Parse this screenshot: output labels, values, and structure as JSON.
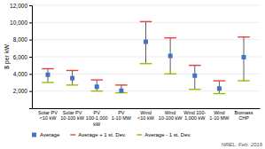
{
  "chart_data": {
    "type": "range",
    "ylabel": "$ per kW",
    "annotation": "NREL: Feb. 2016",
    "categories": [
      "Solar PV\n<10 kW",
      "Solar PV\n10-100 kW",
      "PV\n100-1,000\nkW",
      "PV\n1-10 MW",
      "Wind\n<10 kW",
      "Wind\n10-100 kW",
      "Wind 100-\n1,000 kW",
      "Wind\n1-10 MW",
      "Biomass\nCHP"
    ],
    "series": [
      {
        "name": "Average",
        "color": "#4472C4",
        "marker": "square",
        "values": [
          3900,
          3500,
          2500,
          2050,
          7750,
          6100,
          3800,
          2300,
          5950
        ]
      },
      {
        "name": "Average + 1 st. Dev.",
        "color": "#E8413C",
        "marker": "dash",
        "values": [
          4600,
          4400,
          3300,
          2700,
          10100,
          8200,
          5000,
          3200,
          8300
        ]
      },
      {
        "name": "Average - 1 st. Dev.",
        "color": "#9BBB00",
        "marker": "dash",
        "values": [
          3000,
          2700,
          2000,
          1800,
          5200,
          4000,
          2200,
          1700,
          3200
        ]
      }
    ],
    "ylim": [
      0,
      12000
    ],
    "yticks": [
      {
        "value": 2000,
        "label": "2,000"
      },
      {
        "value": 4000,
        "label": "4,000"
      },
      {
        "value": 6000,
        "label": "6,000"
      },
      {
        "value": 8000,
        "label": "8,000"
      },
      {
        "value": 10000,
        "label": "10,000"
      },
      {
        "value": 12000,
        "label": "12,000"
      }
    ],
    "grid": true,
    "legend": "bottom"
  }
}
